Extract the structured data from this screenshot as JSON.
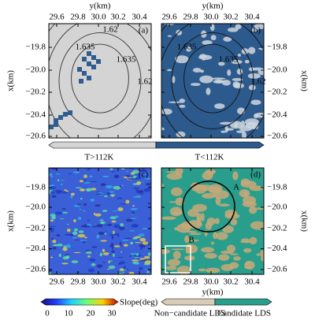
{
  "axes": {
    "x_label": "y(km)",
    "y_label": "x(km)",
    "x_ticks": [
      "29.6",
      "29.8",
      "30.0",
      "30.2",
      "30.4"
    ],
    "y_ticks": [
      "−19.8",
      "−20.0",
      "−20.2",
      "−20.4",
      "−20.6"
    ]
  },
  "panels": [
    {
      "tag": "(a)",
      "contour_labels": [
        "1.62",
        "1.635",
        "1.635",
        "1.62"
      ]
    },
    {
      "tag": "(b)",
      "contour_labels": [
        "1.635",
        "1.635",
        "1.62"
      ]
    },
    {
      "tag": "(c)"
    },
    {
      "tag": "(d)",
      "annotations": [
        "A",
        "B"
      ]
    }
  ],
  "temperature_bar": {
    "labels": [
      "T>112K",
      "T<112K"
    ]
  },
  "slope_bar": {
    "label": "Slope(deg)",
    "ticks": [
      "0",
      "10",
      "20",
      "30"
    ]
  },
  "lds_bar": {
    "labels": [
      "Non−candidate LDS",
      "Candidate LDS"
    ]
  }
}
